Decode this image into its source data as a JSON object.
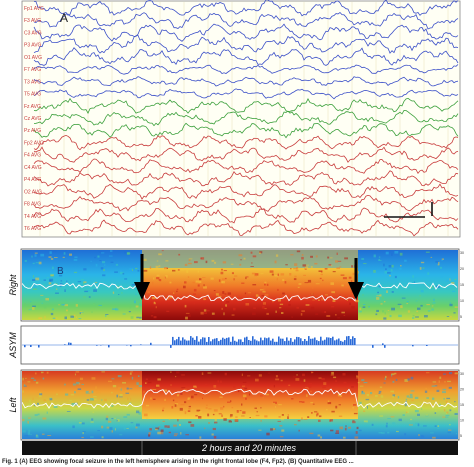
{
  "figure": {
    "panel_a_letter": "A",
    "panel_b_letter": "B",
    "eeg_channels": [
      "Fp1 AVG",
      "F3 AVG",
      "C3 AVG",
      "P3 AVG",
      "O1 AVG",
      "F7 AVG",
      "T3 AVG",
      "T5 AVG",
      "Fz AVG",
      "Cz AVG",
      "Pz AVG",
      "Fp2 AVG",
      "F4 AVG",
      "C4 AVG",
      "P4 AVG",
      "O2 AVG",
      "F8 AVG",
      "T4 AVG",
      "T6 AVG"
    ],
    "trace_colors": {
      "left": "#3c50c8",
      "mid": "#3ca03c",
      "right": "#c83c3c",
      "label": "#c83c3c"
    },
    "spectrogram_labels": {
      "right": "Right",
      "asym": "ASYM",
      "left": "Left"
    },
    "time_bar_label": "2 hours and 20 minutes",
    "scale_ticks": [
      "30",
      "20",
      "15",
      "10",
      "5"
    ],
    "caption": "Fig. 1 (A) EEG showing focal seizure in the left hemisphere arising in the right frontal lobe (F4, Fp2). (B) Quantitative EEG ..."
  }
}
